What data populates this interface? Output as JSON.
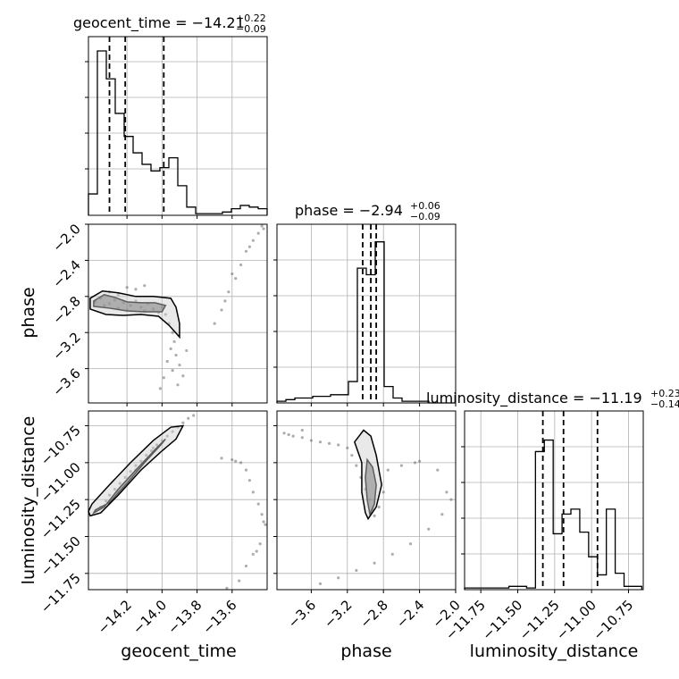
{
  "chart_data": {
    "type": "corner",
    "parameters": [
      "geocent_time",
      "phase",
      "luminosity_distance"
    ],
    "panel_titles": [
      {
        "param": "geocent_time",
        "label": "geocent_time = ",
        "median": "−14.21",
        "plus": "+0.22",
        "minus": "−0.09"
      },
      {
        "param": "phase",
        "label": "phase = ",
        "median": "−2.94",
        "plus": "+0.06",
        "minus": "−0.09"
      },
      {
        "param": "luminosity_distance",
        "label": "luminosity_distance = ",
        "median": "−11.19",
        "plus": "+0.23",
        "minus": "−0.14"
      }
    ],
    "ranges": {
      "geocent_time": [
        -14.42,
        -13.4
      ],
      "phase": [
        -3.98,
        -2.0
      ],
      "luminosity_distance": [
        -11.86,
        -10.65
      ]
    },
    "ticks": {
      "geocent_time": {
        "values": [
          -14.2,
          -14.0,
          -13.8,
          -13.6
        ],
        "labels": [
          "−14.2",
          "−14.0",
          "−13.8",
          "−13.6"
        ]
      },
      "phase": {
        "values": [
          -3.6,
          -3.2,
          -2.8,
          -2.4,
          -2.0
        ],
        "labels": [
          "−3.6",
          "−3.2",
          "−2.8",
          "−2.4",
          "−2.0"
        ]
      },
      "luminosity_distance": {
        "values": [
          -11.75,
          -11.5,
          -11.25,
          -11.0,
          -10.75
        ],
        "labels": [
          "−11.75",
          "−11.50",
          "−11.25",
          "−11.00",
          "−10.75"
        ]
      }
    },
    "grid": true,
    "histograms": {
      "geocent_time": {
        "edges": [
          -14.42,
          -14.369,
          -14.318,
          -14.267,
          -14.216,
          -14.165,
          -14.114,
          -14.063,
          -14.012,
          -13.961,
          -13.91,
          -13.859,
          -13.808,
          -13.757,
          -13.706,
          -13.655,
          -13.604,
          -13.553,
          -13.502,
          -13.451,
          -13.4
        ],
        "values": [
          0.13,
          1.0,
          0.83,
          0.62,
          0.48,
          0.38,
          0.31,
          0.27,
          0.29,
          0.35,
          0.18,
          0.05,
          0.01,
          0.01,
          0.01,
          0.02,
          0.04,
          0.06,
          0.05,
          0.04
        ],
        "quantiles": [
          -14.3,
          -14.21,
          -13.99
        ]
      },
      "phase": {
        "edges": [
          -3.98,
          -3.881,
          -3.782,
          -3.683,
          -3.584,
          -3.485,
          -3.386,
          -3.287,
          -3.188,
          -3.089,
          -2.99,
          -2.891,
          -2.792,
          -2.693,
          -2.594,
          -2.495,
          -2.396,
          -2.297,
          -2.198,
          -2.099,
          -2.0
        ],
        "values": [
          0.01,
          0.02,
          0.03,
          0.03,
          0.04,
          0.04,
          0.05,
          0.05,
          0.13,
          0.82,
          0.78,
          0.98,
          0.1,
          0.03,
          0.01,
          0.01,
          0.01,
          0.0,
          0.0,
          0.0
        ],
        "quantiles": [
          -3.03,
          -2.94,
          -2.88
        ]
      },
      "luminosity_distance": {
        "edges": [
          -11.86,
          -11.8,
          -11.74,
          -11.68,
          -11.62,
          -11.56,
          -11.5,
          -11.44,
          -11.38,
          -11.32,
          -11.26,
          -11.2,
          -11.14,
          -11.08,
          -11.02,
          -10.96,
          -10.9,
          -10.84,
          -10.78,
          -10.72,
          -10.66
        ],
        "values": [
          0.01,
          0.01,
          0.01,
          0.01,
          0.01,
          0.02,
          0.02,
          0.01,
          0.84,
          0.91,
          0.34,
          0.46,
          0.49,
          0.35,
          0.2,
          0.09,
          0.49,
          0.1,
          0.02,
          0.02
        ],
        "quantiles": [
          -11.33,
          -11.19,
          -10.96
        ]
      }
    },
    "pair_plots": [
      {
        "x": "geocent_time",
        "y": "phase",
        "samples": [
          [
            -14.38,
            -2.86
          ],
          [
            -14.35,
            -2.82
          ],
          [
            -14.33,
            -2.9
          ],
          [
            -14.3,
            -2.88
          ],
          [
            -14.27,
            -2.84
          ],
          [
            -14.25,
            -2.93
          ],
          [
            -14.22,
            -2.87
          ],
          [
            -14.2,
            -2.95
          ],
          [
            -14.18,
            -2.9
          ],
          [
            -14.15,
            -2.85
          ],
          [
            -14.12,
            -2.92
          ],
          [
            -14.1,
            -2.96
          ],
          [
            -14.08,
            -2.88
          ],
          [
            -14.05,
            -2.94
          ],
          [
            -14.02,
            -2.98
          ],
          [
            -14.0,
            -2.92
          ],
          [
            -13.98,
            -3.0
          ],
          [
            -13.96,
            -3.1
          ],
          [
            -13.94,
            -3.2
          ],
          [
            -13.93,
            -3.3
          ],
          [
            -13.95,
            -3.38
          ],
          [
            -13.92,
            -3.45
          ],
          [
            -13.97,
            -3.52
          ],
          [
            -13.9,
            -3.56
          ],
          [
            -13.94,
            -3.62
          ],
          [
            -13.99,
            -3.7
          ],
          [
            -13.88,
            -3.68
          ],
          [
            -13.91,
            -3.78
          ],
          [
            -14.01,
            -3.82
          ],
          [
            -13.86,
            -3.4
          ],
          [
            -14.2,
            -2.7
          ],
          [
            -14.15,
            -2.72
          ],
          [
            -14.1,
            -2.68
          ],
          [
            -14.3,
            -2.75
          ],
          [
            -14.25,
            -2.78
          ],
          [
            -13.7,
            -3.1
          ],
          [
            -13.66,
            -2.95
          ],
          [
            -13.62,
            -2.75
          ],
          [
            -13.58,
            -2.6
          ],
          [
            -13.55,
            -2.45
          ],
          [
            -13.52,
            -2.3
          ],
          [
            -13.48,
            -2.18
          ],
          [
            -13.45,
            -2.1
          ],
          [
            -13.42,
            -2.05
          ],
          [
            -13.6,
            -2.55
          ],
          [
            -13.64,
            -2.85
          ],
          [
            -13.5,
            -2.25
          ],
          [
            -13.43,
            -2.02
          ]
        ],
        "contours": [
          [
            [
              -14.39,
              -2.85
            ],
            [
              -14.33,
              -2.78
            ],
            [
              -14.27,
              -2.81
            ],
            [
              -14.2,
              -2.86
            ],
            [
              -14.12,
              -2.87
            ],
            [
              -14.04,
              -2.87
            ],
            [
              -13.98,
              -2.9
            ],
            [
              -14.0,
              -2.97
            ],
            [
              -14.1,
              -2.97
            ],
            [
              -14.2,
              -2.96
            ],
            [
              -14.3,
              -2.93
            ],
            [
              -14.39,
              -2.91
            ]
          ],
          [
            [
              -14.41,
              -2.82
            ],
            [
              -14.34,
              -2.74
            ],
            [
              -14.25,
              -2.76
            ],
            [
              -14.15,
              -2.8
            ],
            [
              -14.05,
              -2.8
            ],
            [
              -13.95,
              -2.82
            ],
            [
              -13.92,
              -2.92
            ],
            [
              -13.9,
              -3.1
            ],
            [
              -13.9,
              -3.25
            ],
            [
              -13.96,
              -3.12
            ],
            [
              -14.02,
              -3.02
            ],
            [
              -14.12,
              -3.0
            ],
            [
              -14.22,
              -3.01
            ],
            [
              -14.32,
              -3.0
            ],
            [
              -14.41,
              -2.94
            ]
          ]
        ]
      },
      {
        "x": "geocent_time",
        "y": "luminosity_distance",
        "samples": [
          [
            -14.38,
            -11.33
          ],
          [
            -14.35,
            -11.3
          ],
          [
            -14.32,
            -11.26
          ],
          [
            -14.3,
            -11.22
          ],
          [
            -14.27,
            -11.18
          ],
          [
            -14.24,
            -11.14
          ],
          [
            -14.21,
            -11.1
          ],
          [
            -14.18,
            -11.06
          ],
          [
            -14.15,
            -11.02
          ],
          [
            -14.12,
            -10.99
          ],
          [
            -14.09,
            -10.95
          ],
          [
            -14.06,
            -10.92
          ],
          [
            -14.03,
            -10.88
          ],
          [
            -14.0,
            -10.85
          ],
          [
            -13.97,
            -10.82
          ],
          [
            -13.94,
            -10.79
          ],
          [
            -13.91,
            -10.76
          ],
          [
            -13.88,
            -10.73
          ],
          [
            -13.85,
            -10.7
          ],
          [
            -13.82,
            -10.68
          ],
          [
            -14.25,
            -11.2
          ],
          [
            -14.15,
            -11.05
          ],
          [
            -14.05,
            -10.9
          ],
          [
            -13.66,
            -10.97
          ],
          [
            -13.6,
            -10.98
          ],
          [
            -13.55,
            -11.0
          ],
          [
            -13.52,
            -11.05
          ],
          [
            -13.5,
            -11.12
          ],
          [
            -13.48,
            -11.2
          ],
          [
            -13.45,
            -11.28
          ],
          [
            -13.43,
            -11.35
          ],
          [
            -13.41,
            -11.42
          ],
          [
            -13.44,
            -11.55
          ],
          [
            -13.48,
            -11.62
          ],
          [
            -13.52,
            -11.7
          ],
          [
            -13.56,
            -11.8
          ],
          [
            -13.63,
            -11.85
          ],
          [
            -13.58,
            -10.99
          ],
          [
            -13.42,
            -11.4
          ],
          [
            -13.46,
            -11.6
          ]
        ],
        "contours": [
          [
            [
              -14.39,
              -11.34
            ],
            [
              -14.33,
              -11.3
            ],
            [
              -14.25,
              -11.18
            ],
            [
              -14.15,
              -11.05
            ],
            [
              -14.03,
              -10.9
            ],
            [
              -13.98,
              -10.84
            ],
            [
              -14.0,
              -10.87
            ],
            [
              -14.1,
              -11.0
            ],
            [
              -14.2,
              -11.14
            ],
            [
              -14.3,
              -11.27
            ],
            [
              -14.38,
              -11.32
            ]
          ],
          [
            [
              -14.41,
              -11.36
            ],
            [
              -14.35,
              -11.34
            ],
            [
              -14.25,
              -11.22
            ],
            [
              -14.12,
              -11.05
            ],
            [
              -14.0,
              -10.92
            ],
            [
              -13.92,
              -10.84
            ],
            [
              -13.88,
              -10.75
            ],
            [
              -13.95,
              -10.76
            ],
            [
              -14.05,
              -10.85
            ],
            [
              -14.18,
              -11.0
            ],
            [
              -14.3,
              -11.15
            ],
            [
              -14.4,
              -11.28
            ],
            [
              -14.42,
              -11.33
            ]
          ]
        ]
      },
      {
        "x": "phase",
        "y": "luminosity_distance",
        "samples": [
          [
            -3.9,
            -10.8
          ],
          [
            -3.8,
            -10.82
          ],
          [
            -3.7,
            -10.83
          ],
          [
            -3.6,
            -10.85
          ],
          [
            -3.5,
            -10.86
          ],
          [
            -3.4,
            -10.87
          ],
          [
            -3.3,
            -10.88
          ],
          [
            -3.2,
            -10.9
          ],
          [
            -3.15,
            -10.95
          ],
          [
            -3.1,
            -11.02
          ],
          [
            -3.05,
            -11.1
          ],
          [
            -3.0,
            -11.18
          ],
          [
            -2.95,
            -11.25
          ],
          [
            -2.92,
            -11.32
          ],
          [
            -2.9,
            -11.36
          ],
          [
            -2.85,
            -11.3
          ],
          [
            -2.8,
            -11.2
          ],
          [
            -2.75,
            -11.05
          ],
          [
            -2.6,
            -11.02
          ],
          [
            -2.4,
            -10.99
          ],
          [
            -2.2,
            -11.05
          ],
          [
            -2.1,
            -11.2
          ],
          [
            -2.15,
            -11.35
          ],
          [
            -2.3,
            -11.45
          ],
          [
            -2.5,
            -11.55
          ],
          [
            -2.7,
            -11.62
          ],
          [
            -2.9,
            -11.68
          ],
          [
            -3.1,
            -11.73
          ],
          [
            -3.3,
            -11.78
          ],
          [
            -3.5,
            -11.82
          ],
          [
            -3.7,
            -10.78
          ],
          [
            -3.85,
            -10.81
          ],
          [
            -2.05,
            -11.25
          ],
          [
            -2.45,
            -11.0
          ]
        ],
        "contours": [
          [
            [
              -2.95,
              -11.35
            ],
            [
              -2.9,
              -11.28
            ],
            [
              -2.88,
              -11.15
            ],
            [
              -2.92,
              -11.03
            ],
            [
              -2.98,
              -10.98
            ],
            [
              -3.0,
              -11.1
            ],
            [
              -2.98,
              -11.25
            ]
          ],
          [
            [
              -2.97,
              -11.38
            ],
            [
              -2.88,
              -11.3
            ],
            [
              -2.82,
              -11.15
            ],
            [
              -2.88,
              -10.95
            ],
            [
              -2.94,
              -10.82
            ],
            [
              -3.02,
              -10.78
            ],
            [
              -3.12,
              -10.86
            ],
            [
              -3.04,
              -11.0
            ],
            [
              -3.04,
              -11.2
            ],
            [
              -3.0,
              -11.34
            ]
          ]
        ]
      }
    ]
  }
}
